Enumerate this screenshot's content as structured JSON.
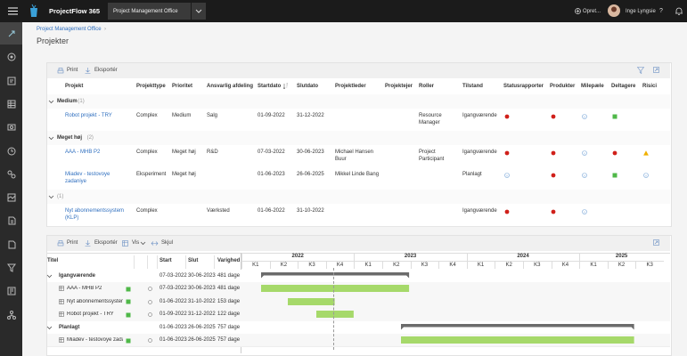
{
  "topbar": {
    "app_name": "ProjectFlow 365",
    "workspace": "Project Management Office",
    "create": "Opret...",
    "user": "Inge Lyngsie",
    "help": "?"
  },
  "breadcrumb": "Project Management Office",
  "page_title": "Projekter",
  "projects_table": {
    "toolbar": [
      "Print",
      "Eksportér"
    ],
    "columns": [
      "Projekt",
      "Projekttype",
      "Prioritet",
      "Ansvarlig afdeling",
      "Startdato",
      "Slutdato",
      "Projektleder",
      "Projektejer",
      "Roller",
      "Tilstand",
      "Statusrapporter",
      "Produkter",
      "Milepæle",
      "Deltagere",
      "Risici"
    ],
    "groups": [
      {
        "label": "Medium",
        "count": "(1)",
        "rows": [
          {
            "cells": [
              "Robot projekt - TRY",
              "Complex",
              "Medium",
              "Salg",
              "01-09-2022",
              "31-12-2022",
              null,
              null,
              "Resource Manager",
              "Igangværende"
            ],
            "indicators": [
              "red",
              "red",
              "info",
              "green",
              null
            ]
          }
        ]
      },
      {
        "label": "Meget høj",
        "count": "(2)",
        "rows": [
          {
            "cells": [
              "AAA - MHB P2",
              "Complex",
              "Meget høj",
              "R&D",
              "07-03-2022",
              "30-06-2023",
              "Michael Hansen Buur",
              null,
              "Project Participant",
              "Igangværende"
            ],
            "indicators": [
              "red",
              "red",
              "info",
              "red",
              "warning"
            ]
          },
          {
            "cells": [
              "Miadev - testovoye zadaniye",
              "Eksperiment",
              "Meget høj",
              null,
              "01-06-2023",
              "26-06-2025",
              "Mikkel Linde Bang",
              null,
              null,
              "Planlagt"
            ],
            "indicators": [
              "info",
              "red",
              "info",
              "green",
              "info"
            ]
          }
        ]
      },
      {
        "label": null,
        "count": "(1)",
        "rows": [
          {
            "cells": [
              "Nyt abonnementssystem (KLP)",
              "Complex",
              null,
              "Værksted",
              "01-06-2022",
              "31-10-2022",
              null,
              null,
              null,
              "Igangværende"
            ],
            "indicators": [
              "red",
              "red",
              "info",
              null,
              null
            ]
          }
        ]
      }
    ]
  },
  "gantt": {
    "toolbar": [
      "Print",
      "Eksportér",
      "Vis",
      "Skjul"
    ],
    "columns": [
      "Titel",
      "Start",
      "Slut",
      "Varighed"
    ],
    "years": [
      "2022",
      "2023",
      "2024",
      "2025"
    ],
    "quarters": [
      "K1",
      "K2",
      "K3",
      "K4",
      "K1",
      "K2",
      "K3",
      "K4",
      "K1",
      "K2",
      "K3",
      "K4",
      "K1",
      "K2",
      "K3"
    ],
    "rows": [
      {
        "title": "Igangværende",
        "summary": true,
        "start": "07-03-2022",
        "end": "30-06-2023",
        "duration": "481 dage"
      },
      {
        "title": "AAA - MHB P2",
        "summary": false,
        "start": "07-03-2022",
        "end": "30-06-2023",
        "duration": "481 dage"
      },
      {
        "title": "Nyt abonnementssystem (K",
        "summary": false,
        "start": "01-06-2022",
        "end": "31-10-2022",
        "duration": "153 dage"
      },
      {
        "title": "Robot projekt - TRY",
        "summary": false,
        "start": "01-09-2022",
        "end": "31-12-2022",
        "duration": "122 dage"
      },
      {
        "title": "Planlagt",
        "summary": true,
        "start": "01-06-2023",
        "end": "26-06-2025",
        "duration": "757 dage"
      },
      {
        "title": "Miadev - testovoye zadaniye",
        "summary": false,
        "start": "01-06-2023",
        "end": "26-06-2025",
        "duration": "757 dage"
      }
    ]
  }
}
